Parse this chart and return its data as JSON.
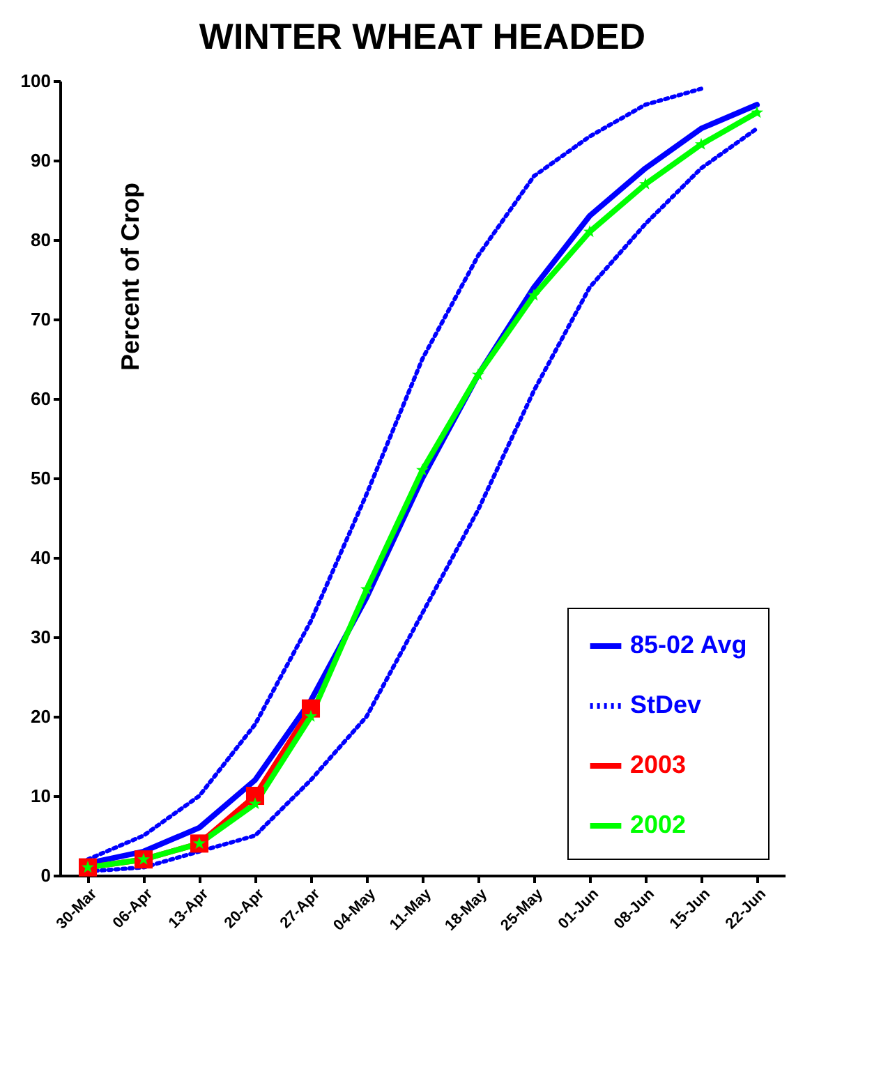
{
  "chart_data": {
    "type": "line",
    "title": "WINTER WHEAT HEADED",
    "ylabel": "Percent of Crop",
    "categories": [
      "30-Mar",
      "06-Apr",
      "13-Apr",
      "20-Apr",
      "27-Apr",
      "04-May",
      "11-May",
      "18-May",
      "25-May",
      "01-Jun",
      "08-Jun",
      "15-Jun",
      "22-Jun"
    ],
    "series": [
      {
        "name": "85-02 Avg",
        "color": "#0000ff",
        "line_style": "solid",
        "marker": "none",
        "values": [
          1.5,
          3,
          6,
          12,
          22,
          35,
          50,
          63,
          74,
          83,
          89,
          94,
          97
        ]
      },
      {
        "name": "StDev",
        "color": "#0000ff",
        "line_style": "dotted",
        "marker": "none",
        "values": [
          2,
          5,
          10,
          19,
          32,
          48,
          65,
          78,
          88,
          93,
          97,
          99,
          null
        ]
      },
      {
        "color": "#0000ff",
        "line_style": "dotted",
        "marker": "none",
        "values": [
          0.5,
          1,
          3,
          5,
          12,
          20,
          33,
          46,
          61,
          74,
          82,
          89,
          94
        ]
      },
      {
        "name": "2003",
        "color": "#ff0000",
        "line_style": "solid",
        "marker": "square",
        "values": [
          1,
          2,
          4,
          10,
          21,
          null,
          null,
          null,
          null,
          null,
          null,
          null,
          null
        ]
      },
      {
        "name": "2002",
        "color": "#00ff00",
        "line_style": "solid",
        "marker": "star",
        "values": [
          1,
          2,
          4,
          9,
          20,
          36,
          51,
          63,
          73,
          81,
          87,
          92,
          96
        ]
      }
    ],
    "ylim": [
      0,
      100
    ],
    "yticks": [
      0,
      10,
      20,
      30,
      40,
      50,
      60,
      70,
      80,
      90,
      100
    ],
    "grid": false,
    "legend": "bottom right"
  }
}
